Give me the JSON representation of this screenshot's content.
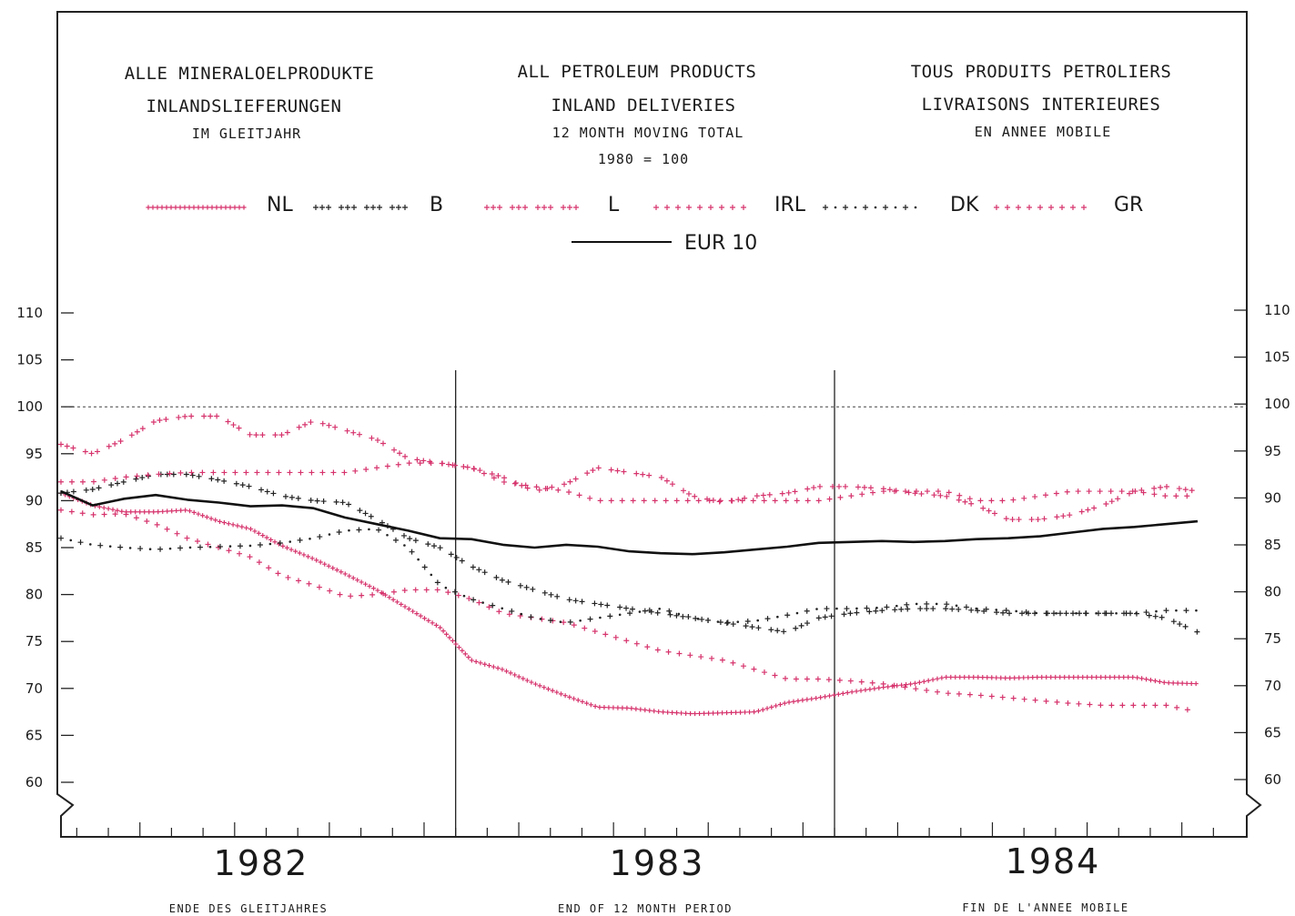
{
  "header": {
    "de": {
      "line1": "ALLE MINERALOELPRODUKTE",
      "line2": "INLANDSLIEFERUNGEN",
      "line3": "IM GLEITJAHR"
    },
    "en": {
      "line1": "ALL PETROLEUM PRODUCTS",
      "line2": "INLAND DELIVERIES",
      "line3": "12 MONTH MOVING TOTAL",
      "line4": "1980 = 100"
    },
    "fr": {
      "line1": "TOUS PRODUITS PETROLIERS",
      "line2": "LIVRAISONS INTERIEURES",
      "line3": "EN ANNEE MOBILE"
    }
  },
  "footer": {
    "de": "ENDE DES GLEITJAHRES",
    "en": "END OF 12 MONTH PERIOD",
    "fr": "FIN DE L'ANNEE MOBILE"
  },
  "chart_data": {
    "type": "line",
    "title": "",
    "xlabel": "",
    "ylabel": "",
    "ylim": [
      60,
      110
    ],
    "yticks": [
      60,
      65,
      70,
      75,
      80,
      85,
      90,
      95,
      100,
      105,
      110
    ],
    "reference_line": 100,
    "year_labels": [
      "1982",
      "1983",
      "1984"
    ],
    "months_per_year": 12,
    "legend_position": "top",
    "x": [
      0,
      1,
      2,
      3,
      4,
      5,
      6,
      7,
      8,
      9,
      10,
      11,
      12,
      13,
      14,
      15,
      16,
      17,
      18,
      19,
      20,
      21,
      22,
      23,
      24,
      25,
      26,
      27,
      28,
      29,
      30,
      31,
      32,
      33,
      34,
      35,
      36
    ],
    "series": [
      {
        "name": "NL",
        "color": "#d6336c",
        "style": "dense-plus",
        "values": [
          90.8,
          89.5,
          88.8,
          88.8,
          89.0,
          87.8,
          87.0,
          85.2,
          83.8,
          82.2,
          80.5,
          78.5,
          76.5,
          73.0,
          72.0,
          70.5,
          69.2,
          68.0,
          67.9,
          67.5,
          67.3,
          67.4,
          67.5,
          68.5,
          69.0,
          69.6,
          70.1,
          70.5,
          71.2,
          71.2,
          71.1,
          71.2,
          71.2,
          71.2,
          71.2,
          70.6,
          70.5
        ]
      },
      {
        "name": "B",
        "color": "#222222",
        "style": "plus-groups",
        "values": [
          90.8,
          91.2,
          92.0,
          92.8,
          92.8,
          92.2,
          91.5,
          90.5,
          90.0,
          89.8,
          88.0,
          86.0,
          85.0,
          83.0,
          81.5,
          80.5,
          79.5,
          79.0,
          78.5,
          78.0,
          77.5,
          77.0,
          76.5,
          76.0,
          77.5,
          78.0,
          78.3,
          78.5,
          78.5,
          78.3,
          78.0,
          78.0,
          78.0,
          78.0,
          78.0,
          77.5,
          76.0
        ]
      },
      {
        "name": "L",
        "color": "#d6336c",
        "style": "plus-groups",
        "values": [
          96.0,
          95.0,
          96.5,
          98.5,
          99.0,
          99.0,
          97.0,
          97.0,
          98.5,
          97.5,
          96.5,
          94.5,
          94.0,
          93.5,
          92.5,
          91.0,
          91.8,
          93.5,
          93.0,
          92.5,
          90.5,
          89.8,
          90.5,
          90.8,
          91.5,
          91.5,
          91.3,
          90.8,
          90.5,
          89.5,
          88.0,
          88.0,
          88.5,
          89.5,
          91.0,
          91.5,
          91.0
        ]
      },
      {
        "name": "IRL",
        "color": "#d6336c",
        "style": "sparse-plus",
        "values": [
          89.0,
          88.5,
          88.6,
          87.5,
          86.0,
          85.0,
          84.0,
          82.0,
          81.0,
          79.8,
          80.0,
          80.5,
          80.5,
          79.5,
          78.0,
          77.5,
          77.0,
          76.0,
          75.0,
          74.0,
          73.5,
          73.0,
          72.0,
          71.0,
          71.0,
          70.8,
          70.5,
          70.0,
          69.5,
          69.3,
          69.0,
          68.7,
          68.4,
          68.2,
          68.2,
          68.2,
          67.5
        ]
      },
      {
        "name": "DK",
        "color": "#222222",
        "style": "sparse-dot",
        "values": [
          86.0,
          85.3,
          85.0,
          84.8,
          85.0,
          85.1,
          85.2,
          85.5,
          86.0,
          86.8,
          87.0,
          85.0,
          81.0,
          79.5,
          78.5,
          77.5,
          77.0,
          77.5,
          78.0,
          78.5,
          77.5,
          77.0,
          77.2,
          77.8,
          78.5,
          78.5,
          78.6,
          79.0,
          79.0,
          78.5,
          78.3,
          78.0,
          78.0,
          78.0,
          78.0,
          78.3,
          78.3
        ]
      },
      {
        "name": "GR",
        "color": "#d6336c",
        "style": "sparse-plus",
        "values": [
          92.0,
          92.0,
          92.5,
          92.8,
          93.0,
          93.0,
          93.0,
          93.0,
          93.0,
          93.0,
          93.5,
          94.0,
          94.0,
          93.5,
          92.0,
          91.5,
          91.0,
          90.0,
          90.0,
          90.0,
          90.0,
          90.0,
          90.0,
          90.0,
          90.0,
          90.5,
          91.0,
          91.0,
          91.0,
          90.0,
          90.0,
          90.5,
          91.0,
          91.0,
          91.0,
          90.5,
          90.5
        ]
      },
      {
        "name": "EUR 10",
        "color": "#111111",
        "style": "solid",
        "values": [
          91.0,
          89.5,
          90.2,
          90.6,
          90.1,
          89.8,
          89.4,
          89.5,
          89.2,
          88.2,
          87.5,
          86.8,
          86.0,
          85.9,
          85.3,
          85.0,
          85.3,
          85.1,
          84.6,
          84.4,
          84.3,
          84.5,
          84.8,
          85.1,
          85.5,
          85.6,
          85.7,
          85.6,
          85.7,
          85.9,
          86.0,
          86.2,
          86.6,
          87.0,
          87.2,
          87.5,
          87.8
        ]
      }
    ]
  }
}
